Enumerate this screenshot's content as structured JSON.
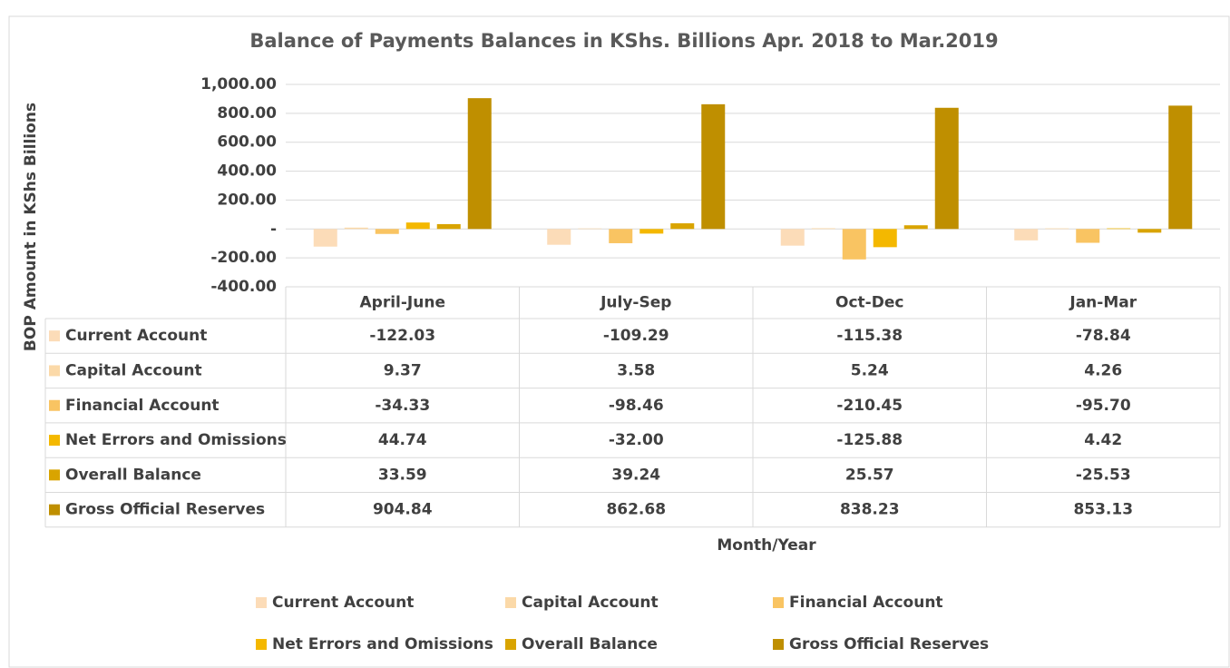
{
  "chart_data": {
    "type": "bar",
    "title": "Balance of Payments Balances in KShs. Billions Apr. 2018 to Mar.2019",
    "y_label": "BOP Amount in KShs Billions",
    "x_label": "Month/Year",
    "categories": [
      "April-June",
      "July-Sep",
      "Oct-Dec",
      "Jan-Mar"
    ],
    "series": [
      {
        "name": "Current Account",
        "color": "#fcdcb8",
        "values": [
          -122.03,
          -109.29,
          -115.38,
          -78.84
        ],
        "value_labels": [
          "-122.03",
          "-109.29",
          "-115.38",
          "-78.84"
        ]
      },
      {
        "name": "Capital Account",
        "color": "#fbd9a8",
        "values": [
          9.37,
          3.58,
          5.24,
          4.26
        ],
        "value_labels": [
          "9.37",
          "3.58",
          "5.24",
          "4.26"
        ]
      },
      {
        "name": "Financial Account",
        "color": "#f9c462",
        "values": [
          -34.33,
          -98.46,
          -210.45,
          -95.7
        ],
        "value_labels": [
          "-34.33",
          "-98.46",
          "-210.45",
          "-95.70"
        ]
      },
      {
        "name": "Net Errors and Omissions",
        "color": "#f4b800",
        "values": [
          44.74,
          -32.0,
          -125.88,
          4.42
        ],
        "value_labels": [
          "44.74",
          "-32.00",
          "-125.88",
          "4.42"
        ]
      },
      {
        "name": "Overall Balance",
        "color": "#d9a400",
        "values": [
          33.59,
          39.24,
          25.57,
          -25.53
        ],
        "value_labels": [
          "33.59",
          "39.24",
          "25.57",
          "-25.53"
        ]
      },
      {
        "name": "Gross Official Reserves",
        "color": "#bf8f00",
        "values": [
          904.84,
          862.68,
          838.23,
          853.13
        ],
        "value_labels": [
          "904.84",
          "862.68",
          "838.23",
          "853.13"
        ]
      }
    ],
    "ylim": [
      -400,
      1000
    ],
    "yticks": [
      {
        "value": -400,
        "label": "-400.00"
      },
      {
        "value": -200,
        "label": "-200.00"
      },
      {
        "value": 0,
        "label": "-"
      },
      {
        "value": 200,
        "label": "200.00"
      },
      {
        "value": 400,
        "label": "400.00"
      },
      {
        "value": 600,
        "label": "600.00"
      },
      {
        "value": 800,
        "label": "800.00"
      },
      {
        "value": 1000,
        "label": "1,000.00"
      }
    ],
    "grid": true
  }
}
